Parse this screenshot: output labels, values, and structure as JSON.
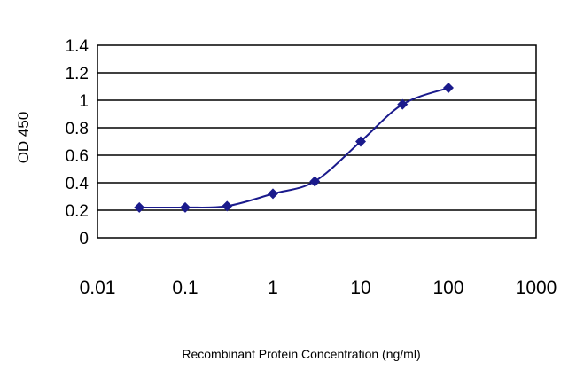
{
  "chart_data": {
    "type": "line",
    "xscale": "log",
    "xlabel": "Recombinant Protein Concentration (ng/ml)",
    "ylabel": "OD 450",
    "xlim": [
      0.01,
      1000
    ],
    "ylim": [
      0,
      1.4
    ],
    "x_ticks": [
      "0.01",
      "0.1",
      "1",
      "10",
      "100",
      "1000"
    ],
    "y_ticks": [
      "0",
      "0.2",
      "0.4",
      "0.6",
      "0.8",
      "1",
      "1.2",
      "1.4"
    ],
    "grid": "horizontal",
    "series_color": "#1a1a8c",
    "marker": "diamond",
    "series": [
      {
        "x": [
          0.03,
          0.1,
          0.3,
          1,
          3,
          10,
          30,
          100
        ],
        "y": [
          0.22,
          0.22,
          0.23,
          0.32,
          0.41,
          0.7,
          0.97,
          1.09
        ]
      }
    ]
  }
}
